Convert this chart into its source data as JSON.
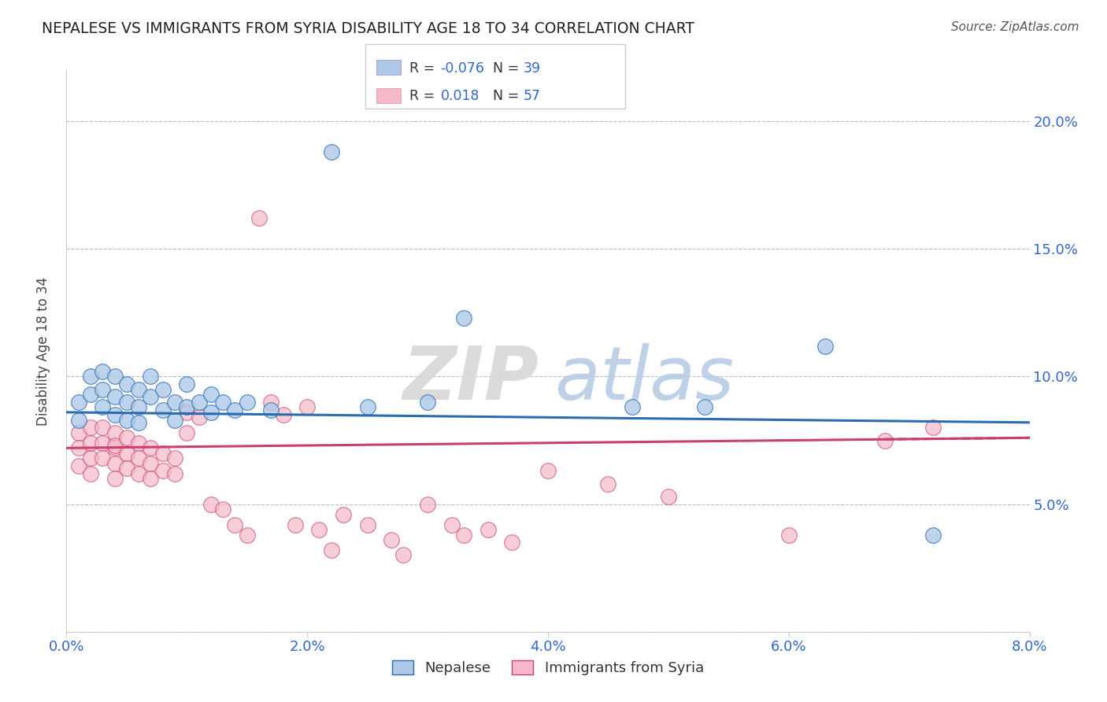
{
  "title": "NEPALESE VS IMMIGRANTS FROM SYRIA DISABILITY AGE 18 TO 34 CORRELATION CHART",
  "source": "Source: ZipAtlas.com",
  "ylabel": "Disability Age 18 to 34",
  "legend_labels": [
    "Nepalese",
    "Immigrants from Syria"
  ],
  "blue_R": "-0.076",
  "blue_N": "39",
  "pink_R": "0.018",
  "pink_N": "57",
  "blue_color": "#aec8e8",
  "pink_color": "#f4b8c8",
  "blue_line_color": "#2b6cb0",
  "pink_line_color": "#c94070",
  "xlim": [
    0.0,
    0.08
  ],
  "ylim": [
    0.0,
    0.22
  ],
  "xticks": [
    0.0,
    0.02,
    0.04,
    0.06,
    0.08
  ],
  "yticks": [
    0.0,
    0.05,
    0.1,
    0.15,
    0.2
  ],
  "ytick_labels_right": [
    "",
    "5.0%",
    "10.0%",
    "15.0%",
    "20.0%"
  ],
  "xtick_labels": [
    "0.0%",
    "2.0%",
    "4.0%",
    "6.0%",
    "8.0%"
  ],
  "watermark_ZIP": "ZIP",
  "watermark_atlas": "atlas",
  "blue_x": [
    0.001,
    0.001,
    0.002,
    0.002,
    0.003,
    0.003,
    0.003,
    0.004,
    0.004,
    0.004,
    0.005,
    0.005,
    0.005,
    0.006,
    0.006,
    0.006,
    0.007,
    0.007,
    0.008,
    0.008,
    0.009,
    0.009,
    0.01,
    0.01,
    0.011,
    0.012,
    0.012,
    0.013,
    0.014,
    0.015,
    0.017,
    0.022,
    0.033,
    0.047,
    0.053,
    0.063,
    0.072,
    0.03,
    0.025
  ],
  "blue_y": [
    0.09,
    0.083,
    0.1,
    0.093,
    0.102,
    0.095,
    0.088,
    0.1,
    0.092,
    0.085,
    0.097,
    0.09,
    0.083,
    0.095,
    0.088,
    0.082,
    0.1,
    0.092,
    0.095,
    0.087,
    0.09,
    0.083,
    0.097,
    0.088,
    0.09,
    0.093,
    0.086,
    0.09,
    0.087,
    0.09,
    0.087,
    0.188,
    0.123,
    0.088,
    0.088,
    0.112,
    0.038,
    0.09,
    0.088
  ],
  "pink_x": [
    0.001,
    0.001,
    0.001,
    0.002,
    0.002,
    0.002,
    0.002,
    0.003,
    0.003,
    0.003,
    0.004,
    0.004,
    0.004,
    0.004,
    0.004,
    0.005,
    0.005,
    0.005,
    0.006,
    0.006,
    0.006,
    0.007,
    0.007,
    0.007,
    0.008,
    0.008,
    0.009,
    0.009,
    0.01,
    0.01,
    0.011,
    0.012,
    0.013,
    0.014,
    0.015,
    0.016,
    0.017,
    0.018,
    0.019,
    0.02,
    0.021,
    0.022,
    0.023,
    0.025,
    0.027,
    0.028,
    0.03,
    0.032,
    0.033,
    0.035,
    0.037,
    0.04,
    0.045,
    0.05,
    0.06,
    0.068,
    0.072
  ],
  "pink_y": [
    0.078,
    0.072,
    0.065,
    0.08,
    0.074,
    0.068,
    0.062,
    0.08,
    0.074,
    0.068,
    0.078,
    0.072,
    0.066,
    0.06,
    0.073,
    0.076,
    0.07,
    0.064,
    0.074,
    0.068,
    0.062,
    0.072,
    0.066,
    0.06,
    0.07,
    0.063,
    0.068,
    0.062,
    0.086,
    0.078,
    0.084,
    0.05,
    0.048,
    0.042,
    0.038,
    0.162,
    0.09,
    0.085,
    0.042,
    0.088,
    0.04,
    0.032,
    0.046,
    0.042,
    0.036,
    0.03,
    0.05,
    0.042,
    0.038,
    0.04,
    0.035,
    0.063,
    0.058,
    0.053,
    0.038,
    0.075,
    0.08
  ],
  "blue_trend_x": [
    0.0,
    0.08
  ],
  "blue_trend_y": [
    0.086,
    0.082
  ],
  "pink_trend_x": [
    0.0,
    0.08
  ],
  "pink_trend_y": [
    0.072,
    0.076
  ]
}
